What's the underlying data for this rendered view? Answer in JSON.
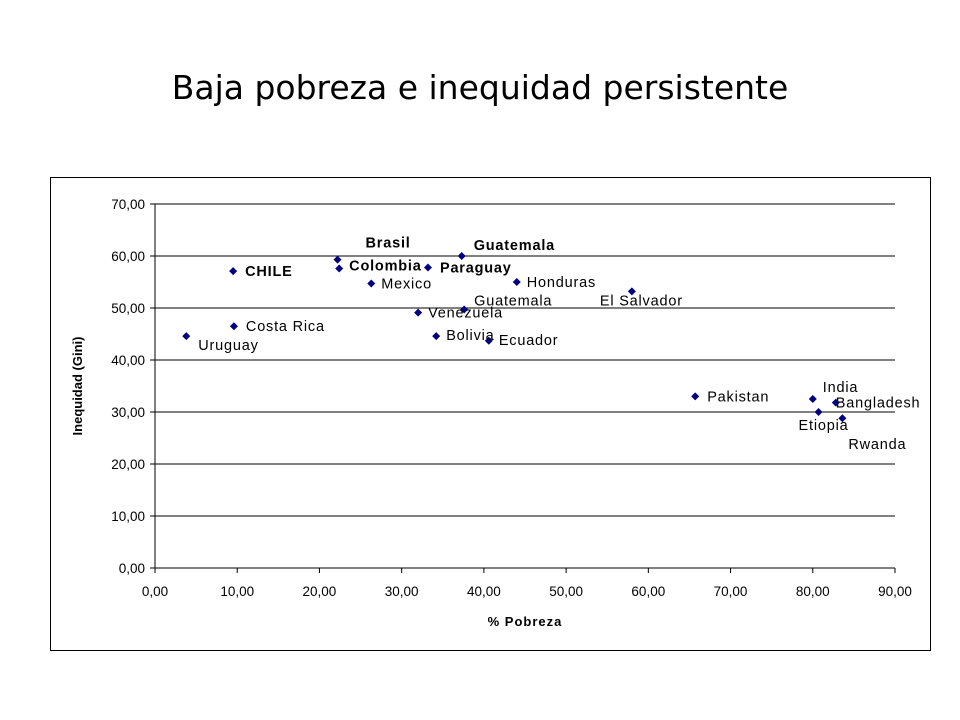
{
  "slide": {
    "title": "Baja pobreza e inequidad persistente"
  },
  "chart_data": {
    "type": "scatter",
    "title": "",
    "xlabel": "% Pobreza",
    "ylabel": "Inequidad (Gini)",
    "xlim": [
      0,
      90
    ],
    "ylim": [
      0,
      70
    ],
    "x_ticks": [
      "0,00",
      "10,00",
      "20,00",
      "30,00",
      "40,00",
      "50,00",
      "60,00",
      "70,00",
      "80,00",
      "90,00"
    ],
    "y_ticks": [
      "0,00",
      "10,00",
      "20,00",
      "30,00",
      "40,00",
      "50,00",
      "60,00",
      "70,00"
    ],
    "grid": "horizontal",
    "legend": "none",
    "marker_color": "#000080",
    "points": [
      {
        "label": "Uruguay",
        "x": 3.8,
        "y": 44.6,
        "bold": false
      },
      {
        "label": "Costa Rica",
        "x": 9.6,
        "y": 46.5,
        "bold": false
      },
      {
        "label": "CHILE",
        "x": 9.5,
        "y": 57.1,
        "bold": true
      },
      {
        "label": "Brasil",
        "x": 22.2,
        "y": 59.3,
        "bold": true
      },
      {
        "label": "Colombia",
        "x": 22.4,
        "y": 57.6,
        "bold": true
      },
      {
        "label": "Mexico",
        "x": 26.3,
        "y": 54.7,
        "bold": false
      },
      {
        "label": "Paraguay",
        "x": 33.2,
        "y": 57.8,
        "bold": true
      },
      {
        "label": "Guatemala",
        "x": 37.3,
        "y": 60.0,
        "bold": true
      },
      {
        "label": "Venezuela",
        "x": 32.0,
        "y": 49.1,
        "bold": false
      },
      {
        "label": "Bolivia",
        "x": 34.2,
        "y": 44.6,
        "bold": false
      },
      {
        "label": "Guatemala",
        "x": 37.6,
        "y": 49.7,
        "bold": false
      },
      {
        "label": "Ecuador",
        "x": 40.6,
        "y": 43.7,
        "bold": false
      },
      {
        "label": "Honduras",
        "x": 44.0,
        "y": 55.0,
        "bold": false
      },
      {
        "label": "El Salvador",
        "x": 58.0,
        "y": 53.2,
        "bold": false
      },
      {
        "label": "Pakistan",
        "x": 65.7,
        "y": 33.0,
        "bold": false
      },
      {
        "label": "India",
        "x": 80.0,
        "y": 32.5,
        "bold": false
      },
      {
        "label": "Bangladesh",
        "x": 82.8,
        "y": 31.8,
        "bold": false
      },
      {
        "label": "Etiopia",
        "x": 80.7,
        "y": 30.0,
        "bold": false
      },
      {
        "label": "Rwanda",
        "x": 83.6,
        "y": 28.8,
        "bold": false
      }
    ]
  }
}
